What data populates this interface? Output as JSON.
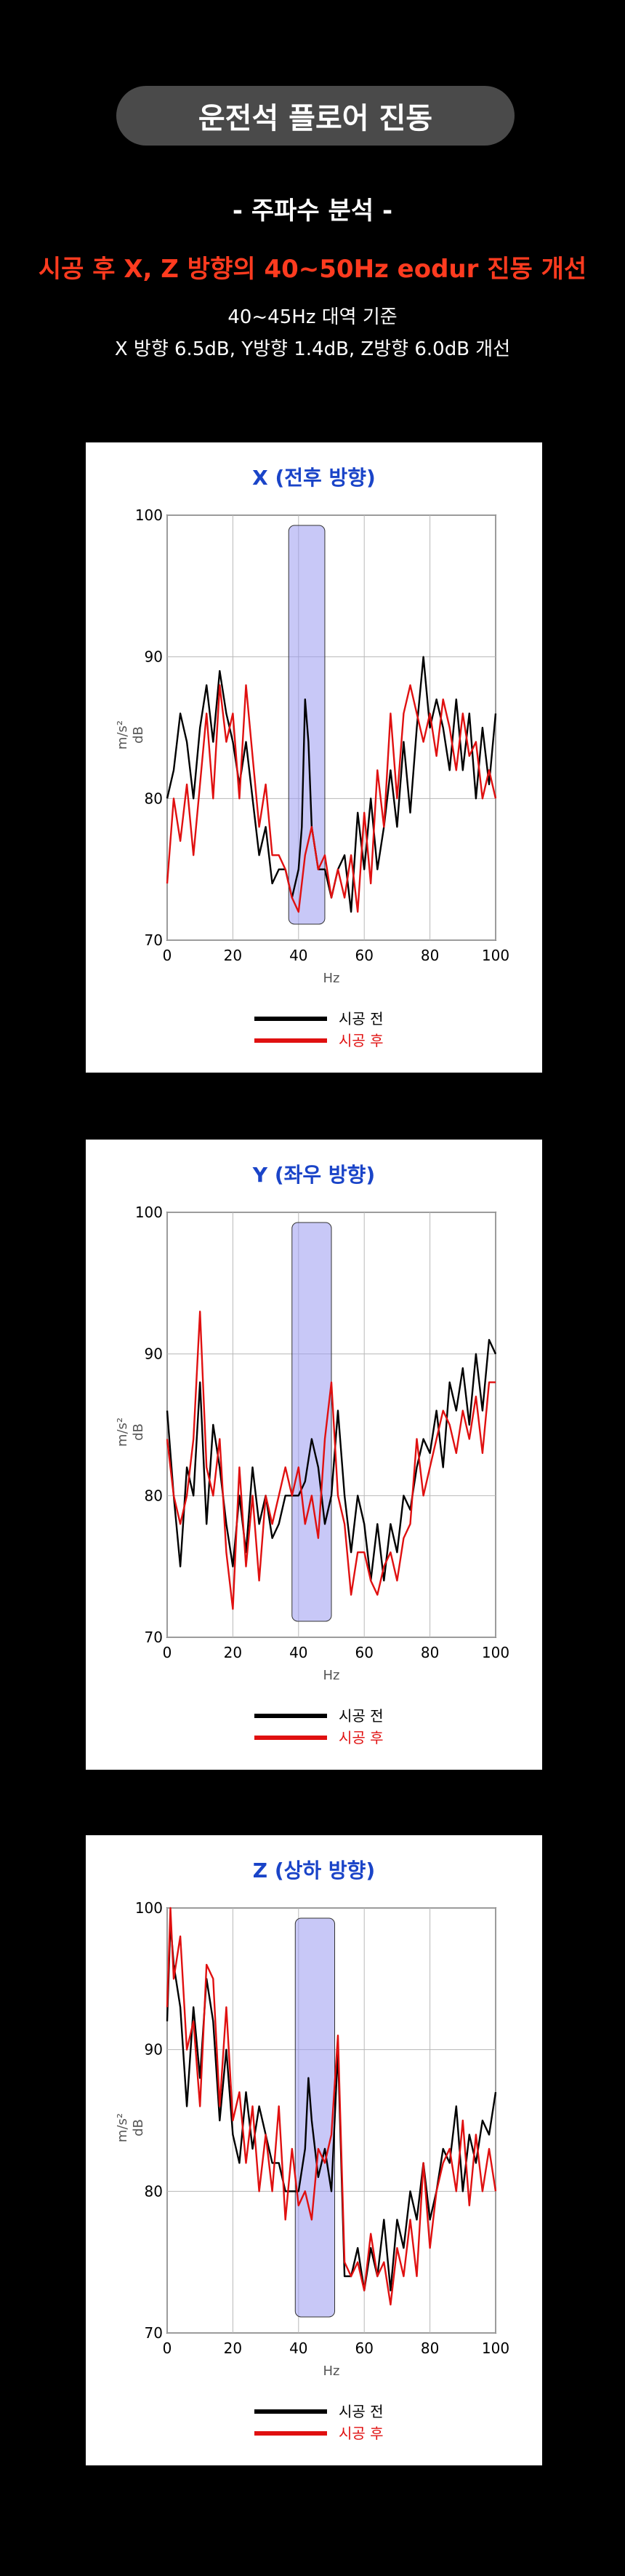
{
  "header": {
    "title": "운전석 플로어 진동",
    "subtitle": "- 주파수 분석 -",
    "headline": "시공 후 X, Z 방향의 40~50Hz eodur 진동 개선",
    "desc_line1": "40~45Hz 대역 기준",
    "desc_line2": "X 방향 6.5dB, Y방향 1.4dB, Z방향 6.0dB 개선"
  },
  "colors": {
    "before": "#000000",
    "after": "#e01010",
    "band": "#9a9af0",
    "title": "#1a44c8"
  },
  "chart_data": [
    {
      "type": "line",
      "title": "X (전후 방향)",
      "xlabel": "Hz",
      "ylabel_line1": "m/s²",
      "ylabel_line2": "dB",
      "xlim": [
        0,
        100
      ],
      "ylim": [
        70,
        100
      ],
      "xticks": [
        0,
        20,
        40,
        60,
        80,
        100
      ],
      "yticks": [
        70,
        80,
        90,
        100
      ],
      "highlight_band": [
        37,
        48
      ],
      "legend": [
        "시공 전",
        "시공 후"
      ],
      "series": [
        {
          "name": "시공 전",
          "x": [
            0,
            2,
            4,
            6,
            8,
            10,
            12,
            14,
            16,
            18,
            20,
            22,
            24,
            26,
            28,
            30,
            32,
            34,
            36,
            38,
            40,
            41,
            42,
            43,
            44,
            46,
            48,
            50,
            52,
            54,
            56,
            58,
            60,
            62,
            64,
            66,
            68,
            70,
            72,
            74,
            76,
            78,
            80,
            82,
            84,
            86,
            88,
            90,
            92,
            94,
            96,
            98,
            100
          ],
          "y": [
            80,
            82,
            86,
            84,
            80,
            85,
            88,
            84,
            89,
            86,
            84,
            81,
            84,
            80,
            76,
            78,
            74,
            75,
            75,
            73,
            75,
            78,
            87,
            84,
            78,
            75,
            75,
            73,
            75,
            76,
            72,
            79,
            75,
            80,
            75,
            78,
            82,
            78,
            84,
            79,
            85,
            90,
            85,
            87,
            85,
            82,
            87,
            82,
            86,
            80,
            85,
            81,
            86
          ]
        },
        {
          "name": "시공 후",
          "x": [
            0,
            2,
            4,
            6,
            8,
            10,
            12,
            14,
            16,
            18,
            20,
            22,
            24,
            26,
            28,
            30,
            32,
            34,
            36,
            38,
            40,
            42,
            44,
            46,
            48,
            50,
            52,
            54,
            56,
            58,
            60,
            62,
            64,
            66,
            68,
            70,
            72,
            74,
            76,
            78,
            80,
            82,
            84,
            86,
            88,
            90,
            92,
            94,
            96,
            98,
            100
          ],
          "y": [
            74,
            80,
            77,
            81,
            76,
            81,
            86,
            80,
            88,
            84,
            86,
            80,
            88,
            83,
            78,
            81,
            76,
            76,
            75,
            73,
            72,
            76,
            78,
            75,
            76,
            73,
            75,
            73,
            76,
            72,
            79,
            74,
            82,
            78,
            86,
            80,
            86,
            88,
            86,
            84,
            86,
            83,
            87,
            85,
            82,
            86,
            83,
            84,
            80,
            82,
            80
          ]
        }
      ]
    },
    {
      "type": "line",
      "title": "Y (좌우 방향)",
      "xlabel": "Hz",
      "ylabel_line1": "m/s²",
      "ylabel_line2": "dB",
      "xlim": [
        0,
        100
      ],
      "ylim": [
        70,
        100
      ],
      "xticks": [
        0,
        20,
        40,
        60,
        80,
        100
      ],
      "yticks": [
        70,
        80,
        90,
        100
      ],
      "highlight_band": [
        38,
        50
      ],
      "legend": [
        "시공 전",
        "시공 후"
      ],
      "series": [
        {
          "name": "시공 전",
          "x": [
            0,
            2,
            4,
            6,
            8,
            10,
            12,
            14,
            16,
            18,
            20,
            22,
            24,
            26,
            28,
            30,
            32,
            34,
            36,
            38,
            40,
            42,
            44,
            46,
            48,
            50,
            52,
            54,
            56,
            58,
            60,
            62,
            64,
            66,
            68,
            70,
            72,
            74,
            76,
            78,
            80,
            82,
            84,
            86,
            88,
            90,
            92,
            94,
            96,
            98,
            100
          ],
          "y": [
            86,
            80,
            75,
            82,
            80,
            88,
            78,
            85,
            82,
            78,
            75,
            80,
            76,
            82,
            78,
            80,
            77,
            78,
            80,
            80,
            80,
            81,
            84,
            82,
            78,
            80,
            86,
            80,
            76,
            80,
            78,
            74,
            78,
            74,
            78,
            76,
            80,
            79,
            82,
            84,
            83,
            86,
            82,
            88,
            86,
            89,
            85,
            90,
            86,
            91,
            90
          ]
        },
        {
          "name": "시공 후",
          "x": [
            0,
            2,
            4,
            6,
            8,
            10,
            12,
            14,
            16,
            18,
            20,
            22,
            24,
            26,
            28,
            30,
            32,
            34,
            36,
            38,
            40,
            42,
            44,
            46,
            48,
            50,
            52,
            54,
            56,
            58,
            60,
            62,
            64,
            66,
            68,
            70,
            72,
            74,
            76,
            78,
            80,
            82,
            84,
            86,
            88,
            90,
            92,
            94,
            96,
            98,
            100
          ],
          "y": [
            84,
            80,
            78,
            80,
            84,
            93,
            82,
            80,
            84,
            76,
            72,
            82,
            75,
            80,
            74,
            80,
            78,
            80,
            82,
            80,
            82,
            78,
            80,
            77,
            84,
            88,
            80,
            78,
            73,
            76,
            76,
            74,
            73,
            75,
            76,
            74,
            77,
            78,
            84,
            80,
            82,
            84,
            86,
            85,
            83,
            86,
            84,
            87,
            83,
            88,
            88
          ]
        }
      ]
    },
    {
      "type": "line",
      "title": "Z (상하 방향)",
      "xlabel": "Hz",
      "ylabel_line1": "m/s²",
      "ylabel_line2": "dB",
      "xlim": [
        0,
        100
      ],
      "ylim": [
        70,
        100
      ],
      "xticks": [
        0,
        20,
        40,
        60,
        80,
        100
      ],
      "yticks": [
        70,
        80,
        90,
        100
      ],
      "highlight_band": [
        39,
        51
      ],
      "legend": [
        "시공 전",
        "시공 후"
      ],
      "series": [
        {
          "name": "시공 전",
          "x": [
            0,
            1,
            2,
            4,
            6,
            8,
            10,
            12,
            14,
            16,
            18,
            20,
            22,
            24,
            26,
            28,
            30,
            32,
            34,
            36,
            38,
            40,
            42,
            43,
            44,
            46,
            48,
            50,
            52,
            54,
            56,
            58,
            60,
            62,
            64,
            66,
            68,
            70,
            72,
            74,
            76,
            78,
            80,
            82,
            84,
            86,
            88,
            90,
            92,
            94,
            96,
            98,
            100
          ],
          "y": [
            92,
            99,
            96,
            93,
            86,
            93,
            88,
            95,
            92,
            85,
            90,
            84,
            82,
            87,
            83,
            86,
            84,
            82,
            82,
            80,
            80,
            80,
            83,
            88,
            85,
            81,
            83,
            80,
            90,
            74,
            74,
            76,
            73,
            76,
            74,
            78,
            73,
            78,
            76,
            80,
            78,
            82,
            78,
            80,
            83,
            82,
            86,
            80,
            84,
            82,
            85,
            84,
            87
          ]
        },
        {
          "name": "시공 후",
          "x": [
            0,
            1,
            2,
            4,
            6,
            8,
            10,
            12,
            14,
            16,
            18,
            20,
            22,
            24,
            26,
            28,
            30,
            32,
            34,
            36,
            38,
            40,
            42,
            44,
            46,
            48,
            50,
            52,
            54,
            56,
            58,
            60,
            62,
            64,
            66,
            68,
            70,
            72,
            74,
            76,
            78,
            80,
            82,
            84,
            86,
            88,
            90,
            92,
            94,
            96,
            98,
            100
          ],
          "y": [
            93,
            100,
            95,
            98,
            90,
            92,
            86,
            96,
            95,
            86,
            93,
            85,
            87,
            82,
            86,
            80,
            84,
            80,
            86,
            78,
            83,
            79,
            80,
            78,
            83,
            82,
            84,
            91,
            75,
            74,
            75,
            73,
            77,
            74,
            75,
            72,
            76,
            74,
            78,
            74,
            82,
            76,
            80,
            82,
            83,
            80,
            85,
            79,
            84,
            80,
            83,
            80
          ]
        }
      ]
    }
  ]
}
